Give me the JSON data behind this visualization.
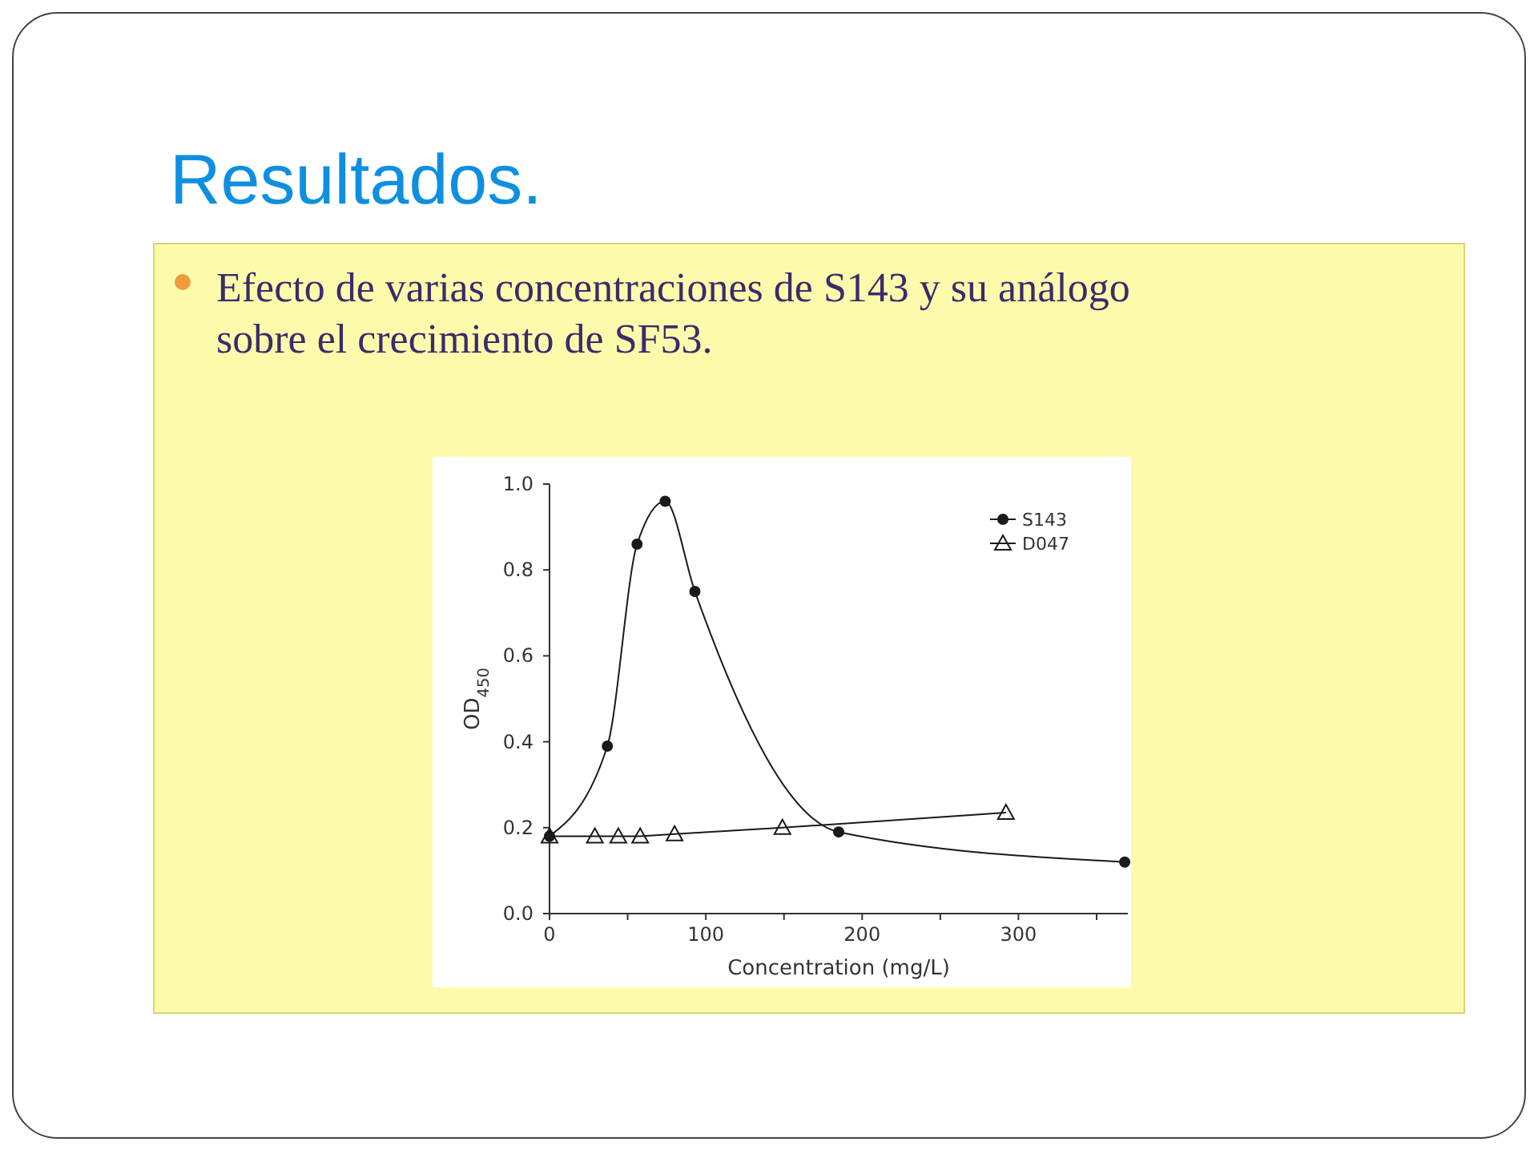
{
  "chart_data": {
    "type": "line",
    "title": "Resultados.",
    "subtitle": "Efecto de varias concentraciones de S143 y su análogo sobre el crecimiento de SF53.",
    "xlabel": "Concentration (mg/L)",
    "ylabel": "OD$_{450}$",
    "xlim": [
      0,
      370
    ],
    "ylim": [
      0,
      1.0
    ],
    "xticks": [
      0,
      {
        "value": 50,
        "label": null
      },
      100,
      {
        "value": 150,
        "label": null
      },
      200,
      {
        "value": 250,
        "label": null
      },
      300,
      {
        "value": 350,
        "label": null
      }
    ],
    "yticks": [
      {
        "value": 0,
        "label": "0.0"
      },
      0.2,
      0.4,
      0.6,
      0.8,
      {
        "value": 1,
        "label": "1.0"
      }
    ],
    "grid": false,
    "legend": "top right",
    "line_style": "solid",
    "series": [
      {
        "name": "S143",
        "color": "#1a1a1a",
        "marker": "circle",
        "x": [
          0,
          37,
          56,
          74,
          93,
          185,
          368
        ],
        "values": [
          0.18,
          0.39,
          0.86,
          0.96,
          0.75,
          0.19,
          0.12
        ]
      },
      {
        "name": "D047",
        "color": "#1a1a1a",
        "marker": "triangle",
        "x": [
          0,
          29,
          44,
          58,
          80,
          149,
          292
        ],
        "values": [
          0.18,
          0.18,
          0.18,
          0.18,
          0.185,
          0.2,
          0.235
        ]
      }
    ]
  }
}
